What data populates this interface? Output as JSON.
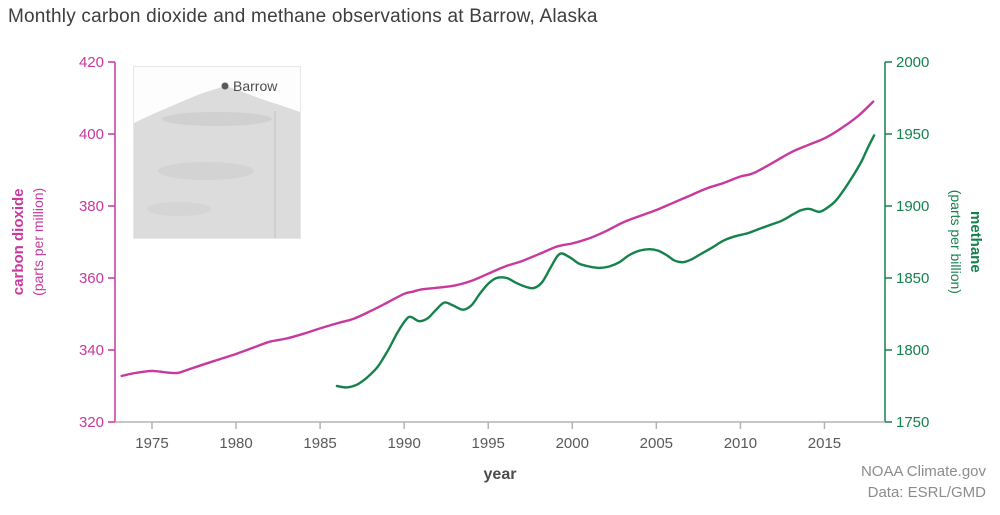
{
  "title": "Monthly carbon dioxide and methane observations at Barrow, Alaska",
  "inset_map": {
    "label": "Barrow"
  },
  "footer": {
    "credit_line1": "NOAA Climate.gov",
    "credit_line2": "Data: ESRL/GMD"
  },
  "chart_data": {
    "type": "line",
    "title": "Monthly carbon dioxide and methane observations at Barrow, Alaska",
    "xlabel": "year",
    "xlim": [
      1972.8,
      2018.6
    ],
    "x_ticks": [
      1975,
      1980,
      1985,
      1990,
      1995,
      2000,
      2005,
      2010,
      2015
    ],
    "left_axis": {
      "label": "carbon dioxide",
      "sublabel": "(parts per million)",
      "lim": [
        320,
        420
      ],
      "ticks": [
        320,
        340,
        360,
        380,
        400,
        420
      ],
      "color": "#c8399e"
    },
    "right_axis": {
      "label": "methane",
      "sublabel": "(parts per billion)",
      "lim": [
        1750,
        2000
      ],
      "ticks": [
        1750,
        1800,
        1850,
        1900,
        1950,
        2000
      ],
      "color": "#15824d"
    },
    "bottom_axis": {
      "color": "#b3b3b3",
      "text_color": "#595959"
    },
    "series": [
      {
        "id": "co2",
        "name": "carbon dioxide",
        "axis": "left",
        "color": "#c8399e",
        "points": [
          [
            1973.2,
            332.8
          ],
          [
            1974,
            333.6
          ],
          [
            1975,
            334.2
          ],
          [
            1975.8,
            333.8
          ],
          [
            1976.5,
            333.6
          ],
          [
            1977,
            334.3
          ],
          [
            1978,
            335.9
          ],
          [
            1979,
            337.4
          ],
          [
            1980,
            338.9
          ],
          [
            1981,
            340.6
          ],
          [
            1982,
            342.3
          ],
          [
            1983,
            343.2
          ],
          [
            1984,
            344.5
          ],
          [
            1985,
            346.0
          ],
          [
            1986,
            347.4
          ],
          [
            1987,
            348.7
          ],
          [
            1988,
            350.8
          ],
          [
            1989,
            353.2
          ],
          [
            1990,
            355.6
          ],
          [
            1990.5,
            356.2
          ],
          [
            1991,
            356.8
          ],
          [
            1992,
            357.3
          ],
          [
            1993,
            357.9
          ],
          [
            1994,
            359.2
          ],
          [
            1995,
            361.2
          ],
          [
            1996,
            363.2
          ],
          [
            1997,
            364.7
          ],
          [
            1998,
            366.6
          ],
          [
            1999,
            368.6
          ],
          [
            1999.5,
            369.2
          ],
          [
            2000,
            369.6
          ],
          [
            2001,
            371.0
          ],
          [
            2002,
            373.0
          ],
          [
            2003,
            375.4
          ],
          [
            2004,
            377.2
          ],
          [
            2005,
            378.9
          ],
          [
            2006,
            380.9
          ],
          [
            2007,
            382.9
          ],
          [
            2008,
            384.9
          ],
          [
            2009,
            386.4
          ],
          [
            2010,
            388.2
          ],
          [
            2010.5,
            388.7
          ],
          [
            2011,
            389.6
          ],
          [
            2012,
            392.2
          ],
          [
            2013,
            394.9
          ],
          [
            2014,
            396.9
          ],
          [
            2015,
            398.8
          ],
          [
            2016,
            401.6
          ],
          [
            2017,
            405.0
          ],
          [
            2017.9,
            409.0
          ]
        ]
      },
      {
        "id": "ch4",
        "name": "methane",
        "axis": "right",
        "color": "#15824d",
        "points": [
          [
            1986.0,
            1775
          ],
          [
            1986.6,
            1774
          ],
          [
            1987.2,
            1776
          ],
          [
            1987.8,
            1781
          ],
          [
            1988.4,
            1788
          ],
          [
            1989.0,
            1799
          ],
          [
            1989.6,
            1812
          ],
          [
            1990.1,
            1821
          ],
          [
            1990.4,
            1823
          ],
          [
            1990.9,
            1820
          ],
          [
            1991.4,
            1822
          ],
          [
            1991.9,
            1828
          ],
          [
            1992.4,
            1833
          ],
          [
            1992.9,
            1831
          ],
          [
            1993.5,
            1828
          ],
          [
            1994.0,
            1831
          ],
          [
            1994.5,
            1839
          ],
          [
            1995.0,
            1846
          ],
          [
            1995.5,
            1850
          ],
          [
            1996.1,
            1850
          ],
          [
            1996.6,
            1847
          ],
          [
            1997.2,
            1844
          ],
          [
            1997.7,
            1843
          ],
          [
            1998.2,
            1847
          ],
          [
            1998.7,
            1857
          ],
          [
            1999.1,
            1865
          ],
          [
            1999.4,
            1867
          ],
          [
            1999.9,
            1864
          ],
          [
            2000.4,
            1860
          ],
          [
            2001.0,
            1858
          ],
          [
            2001.6,
            1857
          ],
          [
            2002.2,
            1858
          ],
          [
            2002.8,
            1861
          ],
          [
            2003.4,
            1866
          ],
          [
            2004.0,
            1869
          ],
          [
            2004.6,
            1870
          ],
          [
            2005.1,
            1869
          ],
          [
            2005.6,
            1866
          ],
          [
            2006.1,
            1862
          ],
          [
            2006.6,
            1861
          ],
          [
            2007.1,
            1863
          ],
          [
            2007.7,
            1867
          ],
          [
            2008.3,
            1871
          ],
          [
            2009.0,
            1876
          ],
          [
            2009.7,
            1879
          ],
          [
            2010.4,
            1881
          ],
          [
            2011.1,
            1884
          ],
          [
            2011.8,
            1887
          ],
          [
            2012.5,
            1890
          ],
          [
            2013.1,
            1894
          ],
          [
            2013.6,
            1897
          ],
          [
            2014.1,
            1898
          ],
          [
            2014.7,
            1896
          ],
          [
            2015.2,
            1899
          ],
          [
            2015.7,
            1904
          ],
          [
            2016.2,
            1912
          ],
          [
            2016.7,
            1921
          ],
          [
            2017.2,
            1931
          ],
          [
            2017.6,
            1941
          ],
          [
            2017.95,
            1949
          ]
        ]
      }
    ]
  }
}
